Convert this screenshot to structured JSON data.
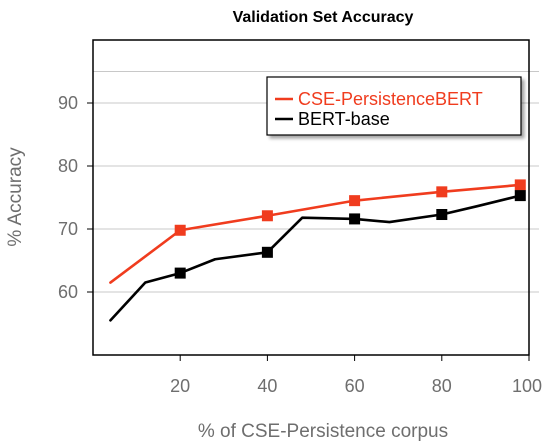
{
  "chart_data": {
    "type": "line",
    "title": "Validation Set Accuracy",
    "xlabel": "% of CSE-Persistence corpus",
    "ylabel": "% Accuracy",
    "xlim": [
      0,
      100
    ],
    "ylim": [
      50,
      100
    ],
    "xticks": [
      20,
      40,
      60,
      80,
      100
    ],
    "yticks": [
      60,
      70,
      80,
      90
    ],
    "grid": "horizontal",
    "legend_position": "top-right",
    "series": [
      {
        "name": "CSE-PersistenceBERT",
        "color": "#f03c1e",
        "marker": "square",
        "x": [
          4,
          20,
          40,
          60,
          80,
          98
        ],
        "y": [
          61.5,
          69.8,
          72.1,
          74.5,
          75.9,
          77.0
        ],
        "marker_x": [
          20,
          40,
          60,
          80,
          98
        ],
        "marker_y": [
          69.8,
          72.1,
          74.5,
          75.9,
          77.0
        ]
      },
      {
        "name": "BERT-base",
        "color": "#000000",
        "marker": "square",
        "x": [
          4,
          12,
          20,
          28,
          40,
          48,
          60,
          68,
          80,
          88,
          98
        ],
        "y": [
          55.5,
          61.5,
          63.0,
          65.2,
          66.3,
          71.8,
          71.6,
          71.1,
          72.3,
          73.6,
          75.3
        ],
        "marker_x": [
          20,
          40,
          60,
          80,
          98
        ],
        "marker_y": [
          63.0,
          66.3,
          71.6,
          72.3,
          75.3
        ]
      }
    ]
  }
}
